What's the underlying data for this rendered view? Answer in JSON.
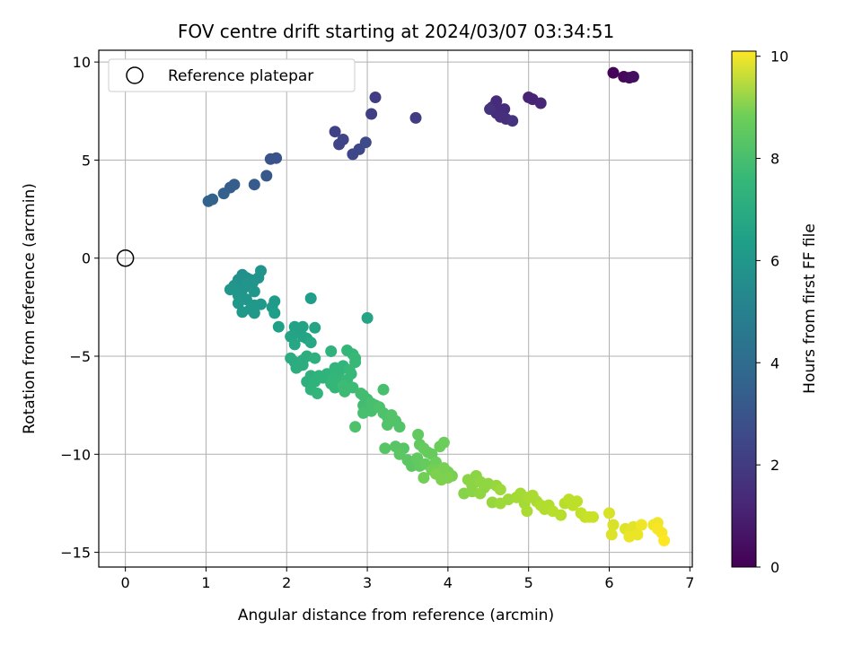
{
  "chart_data": {
    "type": "scatter",
    "title": "FOV centre drift starting at 2024/03/07 03:34:51",
    "xlabel": "Angular distance from reference (arcmin)",
    "ylabel": "Rotation from reference (arcmin)",
    "xlim": [
      -0.33,
      7.03
    ],
    "ylim": [
      -15.75,
      10.6
    ],
    "x_ticks": [
      "0",
      "1",
      "2",
      "3",
      "4",
      "5",
      "6",
      "7"
    ],
    "y_ticks": [
      "−15",
      "−10",
      "−5",
      "0",
      "5",
      "10"
    ],
    "grid": true,
    "legend": {
      "placement": "top-left",
      "entries": [
        "Reference platepar"
      ]
    },
    "colorbar": {
      "label": "Hours from first FF file",
      "colormap": "viridis",
      "range": [
        0,
        10.1
      ],
      "ticks": [
        "0",
        "2",
        "4",
        "6",
        "8",
        "10"
      ]
    },
    "reference_point": {
      "x": 0,
      "y": 0
    },
    "series": [
      {
        "points": [
          [
            6.05,
            9.45,
            0.1
          ],
          [
            6.18,
            9.25,
            0.2
          ],
          [
            6.25,
            9.2,
            0.3
          ],
          [
            6.3,
            9.25,
            0.4
          ],
          [
            5.0,
            8.2,
            1.0
          ],
          [
            5.05,
            8.1,
            1.0
          ],
          [
            5.15,
            7.9,
            1.1
          ],
          [
            4.6,
            8.0,
            1.2
          ],
          [
            4.55,
            7.7,
            1.2
          ],
          [
            4.65,
            7.5,
            1.3
          ],
          [
            4.7,
            7.6,
            1.3
          ],
          [
            4.6,
            7.4,
            1.3
          ],
          [
            4.65,
            7.2,
            1.4
          ],
          [
            4.72,
            7.1,
            1.4
          ],
          [
            4.8,
            7.0,
            1.5
          ],
          [
            4.52,
            7.6,
            1.5
          ],
          [
            3.1,
            8.2,
            1.8
          ],
          [
            3.05,
            7.35,
            1.9
          ],
          [
            3.6,
            7.15,
            1.8
          ],
          [
            2.6,
            6.45,
            2.0
          ],
          [
            2.65,
            5.8,
            2.1
          ],
          [
            2.7,
            6.05,
            2.1
          ],
          [
            2.82,
            5.3,
            2.2
          ],
          [
            2.9,
            5.55,
            2.2
          ],
          [
            2.98,
            5.9,
            2.3
          ],
          [
            1.8,
            5.05,
            2.6
          ],
          [
            1.87,
            5.1,
            2.6
          ],
          [
            1.75,
            4.2,
            2.8
          ],
          [
            1.6,
            3.75,
            2.9
          ],
          [
            1.35,
            3.75,
            3.0
          ],
          [
            1.3,
            3.6,
            3.0
          ],
          [
            1.22,
            3.3,
            3.1
          ],
          [
            1.08,
            3.0,
            3.2
          ],
          [
            1.03,
            2.9,
            3.2
          ],
          [
            1.45,
            -0.85,
            5.0
          ],
          [
            1.5,
            -1.0,
            5.1
          ],
          [
            1.4,
            -1.1,
            5.1
          ],
          [
            1.55,
            -1.1,
            5.1
          ],
          [
            1.65,
            -1.0,
            5.2
          ],
          [
            1.68,
            -0.65,
            5.2
          ],
          [
            1.35,
            -1.4,
            5.2
          ],
          [
            1.45,
            -1.6,
            5.2
          ],
          [
            1.55,
            -1.45,
            5.3
          ],
          [
            1.6,
            -1.7,
            5.3
          ],
          [
            1.3,
            -1.6,
            5.3
          ],
          [
            1.4,
            -1.9,
            5.3
          ],
          [
            1.5,
            -2.1,
            5.3
          ],
          [
            1.4,
            -2.3,
            5.4
          ],
          [
            1.6,
            -2.4,
            5.4
          ],
          [
            1.68,
            -2.35,
            5.4
          ],
          [
            1.55,
            -2.6,
            5.4
          ],
          [
            1.45,
            -2.75,
            5.4
          ],
          [
            1.6,
            -2.8,
            5.4
          ],
          [
            1.5,
            -1.3,
            5.2
          ],
          [
            1.58,
            -1.25,
            5.2
          ],
          [
            1.85,
            -2.2,
            5.5
          ],
          [
            1.82,
            -2.5,
            5.5
          ],
          [
            1.85,
            -2.8,
            5.6
          ],
          [
            1.9,
            -3.5,
            5.7
          ],
          [
            2.3,
            -2.05,
            5.6
          ],
          [
            3.0,
            -3.05,
            5.9
          ],
          [
            2.1,
            -3.5,
            5.8
          ],
          [
            2.15,
            -3.7,
            5.8
          ],
          [
            2.2,
            -3.5,
            5.8
          ],
          [
            2.1,
            -3.85,
            5.8
          ],
          [
            2.05,
            -4.0,
            5.9
          ],
          [
            2.2,
            -4.0,
            5.9
          ],
          [
            2.25,
            -4.1,
            5.9
          ],
          [
            2.15,
            -3.6,
            5.8
          ],
          [
            2.35,
            -3.55,
            5.9
          ],
          [
            2.3,
            -4.3,
            6.0
          ],
          [
            2.1,
            -4.4,
            6.0
          ],
          [
            2.05,
            -5.1,
            6.2
          ],
          [
            2.1,
            -5.3,
            6.2
          ],
          [
            2.15,
            -5.5,
            6.2
          ],
          [
            2.2,
            -5.2,
            6.3
          ],
          [
            2.25,
            -5.0,
            6.3
          ],
          [
            2.12,
            -5.6,
            6.3
          ],
          [
            2.2,
            -5.45,
            6.3
          ],
          [
            2.35,
            -5.1,
            6.4
          ],
          [
            2.3,
            -6.0,
            6.4
          ],
          [
            2.25,
            -6.3,
            6.4
          ],
          [
            2.35,
            -6.3,
            6.5
          ],
          [
            2.4,
            -6.0,
            6.5
          ],
          [
            2.5,
            -5.9,
            6.5
          ],
          [
            2.45,
            -6.1,
            6.5
          ],
          [
            2.3,
            -6.7,
            6.5
          ],
          [
            2.38,
            -6.9,
            6.6
          ],
          [
            2.55,
            -4.75,
            6.5
          ],
          [
            2.6,
            -5.6,
            6.6
          ],
          [
            2.7,
            -5.5,
            6.6
          ],
          [
            2.65,
            -5.8,
            6.6
          ],
          [
            2.58,
            -6.1,
            6.7
          ],
          [
            2.55,
            -6.4,
            6.7
          ],
          [
            2.6,
            -6.6,
            6.7
          ],
          [
            2.68,
            -6.3,
            6.7
          ],
          [
            2.75,
            -4.7,
            6.7
          ],
          [
            2.82,
            -4.9,
            6.7
          ],
          [
            2.85,
            -5.1,
            6.8
          ],
          [
            2.85,
            -5.3,
            6.8
          ],
          [
            2.78,
            -5.7,
            6.8
          ],
          [
            2.8,
            -5.9,
            6.8
          ],
          [
            2.75,
            -6.2,
            6.8
          ],
          [
            2.7,
            -6.5,
            6.9
          ],
          [
            2.72,
            -6.8,
            6.9
          ],
          [
            2.82,
            -6.6,
            6.9
          ],
          [
            2.92,
            -6.9,
            7.0
          ],
          [
            2.95,
            -7.0,
            7.0
          ],
          [
            3.0,
            -7.2,
            7.0
          ],
          [
            2.95,
            -7.5,
            7.0
          ],
          [
            3.05,
            -7.4,
            7.1
          ],
          [
            3.1,
            -7.5,
            7.1
          ],
          [
            3.2,
            -6.7,
            7.1
          ],
          [
            2.95,
            -7.9,
            7.1
          ],
          [
            3.05,
            -7.8,
            7.1
          ],
          [
            2.85,
            -8.6,
            7.2
          ],
          [
            3.15,
            -7.6,
            7.2
          ],
          [
            3.2,
            -7.9,
            7.2
          ],
          [
            3.25,
            -8.1,
            7.2
          ],
          [
            3.3,
            -8.0,
            7.3
          ],
          [
            3.35,
            -8.3,
            7.3
          ],
          [
            3.25,
            -8.5,
            7.3
          ],
          [
            3.4,
            -8.6,
            7.3
          ],
          [
            3.22,
            -9.7,
            7.4
          ],
          [
            3.35,
            -9.6,
            7.4
          ],
          [
            3.45,
            -9.7,
            7.4
          ],
          [
            3.4,
            -10.0,
            7.5
          ],
          [
            3.5,
            -10.3,
            7.5
          ],
          [
            3.55,
            -10.6,
            7.5
          ],
          [
            3.62,
            -10.2,
            7.6
          ],
          [
            3.65,
            -10.6,
            7.6
          ],
          [
            3.63,
            -9.0,
            7.6
          ],
          [
            3.65,
            -9.5,
            7.6
          ],
          [
            3.7,
            -9.7,
            7.7
          ],
          [
            3.75,
            -9.9,
            7.7
          ],
          [
            3.72,
            -10.5,
            7.7
          ],
          [
            3.8,
            -10.0,
            7.7
          ],
          [
            3.85,
            -10.4,
            7.8
          ],
          [
            3.9,
            -9.6,
            7.8
          ],
          [
            3.95,
            -9.4,
            7.8
          ],
          [
            3.8,
            -10.8,
            7.9
          ],
          [
            3.7,
            -11.2,
            7.9
          ],
          [
            3.9,
            -10.8,
            7.9
          ],
          [
            3.95,
            -10.7,
            8.0
          ],
          [
            4.0,
            -10.9,
            8.0
          ],
          [
            4.05,
            -11.1,
            8.0
          ],
          [
            4.0,
            -11.2,
            8.1
          ],
          [
            3.85,
            -11.0,
            8.1
          ],
          [
            3.92,
            -11.3,
            8.1
          ],
          [
            4.2,
            -12.0,
            8.2
          ],
          [
            4.25,
            -11.3,
            8.3
          ],
          [
            4.3,
            -11.6,
            8.3
          ],
          [
            4.3,
            -11.9,
            8.3
          ],
          [
            4.35,
            -11.1,
            8.3
          ],
          [
            4.4,
            -11.4,
            8.4
          ],
          [
            4.4,
            -12.0,
            8.4
          ],
          [
            4.45,
            -11.7,
            8.4
          ],
          [
            4.5,
            -11.5,
            8.4
          ],
          [
            4.55,
            -12.45,
            8.5
          ],
          [
            4.6,
            -11.6,
            8.5
          ],
          [
            4.65,
            -12.5,
            8.6
          ],
          [
            4.65,
            -11.8,
            8.6
          ],
          [
            4.75,
            -12.3,
            8.6
          ],
          [
            4.85,
            -12.2,
            8.7
          ],
          [
            4.9,
            -12.0,
            8.7
          ],
          [
            4.95,
            -12.5,
            8.7
          ],
          [
            5.0,
            -12.2,
            8.8
          ],
          [
            5.05,
            -12.1,
            8.8
          ],
          [
            4.98,
            -12.9,
            8.8
          ],
          [
            5.1,
            -12.4,
            8.8
          ],
          [
            5.15,
            -12.6,
            8.9
          ],
          [
            5.2,
            -12.8,
            8.9
          ],
          [
            5.25,
            -12.6,
            8.9
          ],
          [
            5.3,
            -12.9,
            9.0
          ],
          [
            5.4,
            -13.1,
            9.0
          ],
          [
            5.45,
            -12.5,
            9.0
          ],
          [
            5.5,
            -12.3,
            9.1
          ],
          [
            5.55,
            -12.6,
            9.1
          ],
          [
            5.6,
            -12.4,
            9.1
          ],
          [
            5.65,
            -13.0,
            9.2
          ],
          [
            5.7,
            -13.2,
            9.2
          ],
          [
            5.75,
            -13.2,
            9.3
          ],
          [
            5.8,
            -13.2,
            9.3
          ],
          [
            6.0,
            -13.0,
            9.5
          ],
          [
            6.05,
            -13.6,
            9.5
          ],
          [
            6.03,
            -14.1,
            9.6
          ],
          [
            6.2,
            -13.8,
            9.6
          ],
          [
            6.25,
            -14.0,
            9.7
          ],
          [
            6.3,
            -13.7,
            9.7
          ],
          [
            6.25,
            -14.2,
            9.8
          ],
          [
            6.35,
            -14.1,
            9.8
          ],
          [
            6.4,
            -13.6,
            9.9
          ],
          [
            6.55,
            -13.6,
            9.9
          ],
          [
            6.6,
            -13.5,
            9.9
          ],
          [
            6.6,
            -13.8,
            10.0
          ],
          [
            6.65,
            -14.0,
            10.0
          ],
          [
            6.68,
            -14.4,
            10.1
          ]
        ]
      }
    ]
  }
}
